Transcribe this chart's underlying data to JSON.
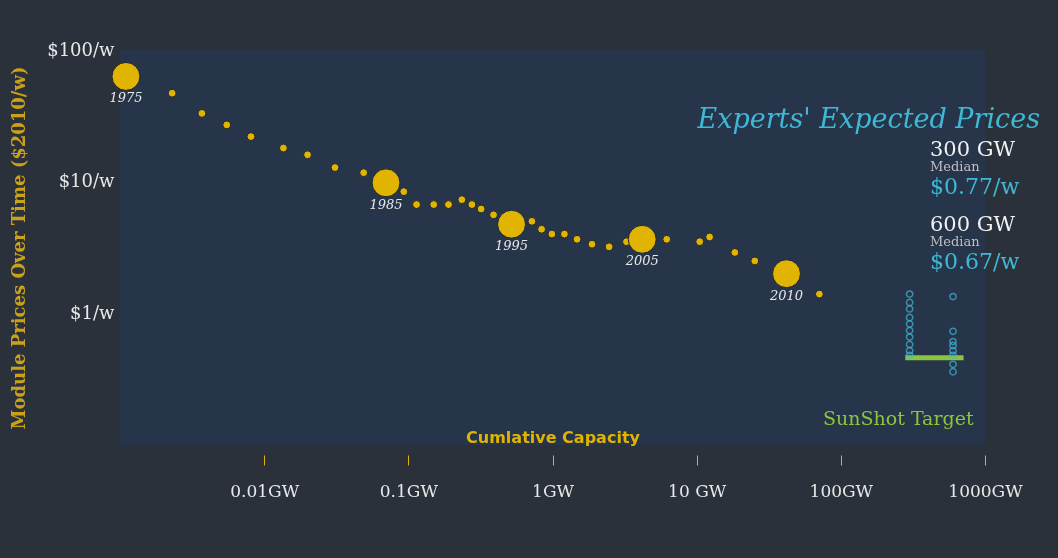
{
  "chart_data": {
    "type": "scatter",
    "xlabel": "Cumlative Capacity",
    "ylabel": "Module Prices Over Time ($2010/w)",
    "log": "xy",
    "xlim": [
      0.001,
      1000
    ],
    "ylim": [
      0.1,
      100
    ],
    "xticks": [
      {
        "value": 0.01,
        "label": "0.01GW"
      },
      {
        "value": 0.1,
        "label": "0.1GW"
      },
      {
        "value": 1,
        "label": "1GW"
      },
      {
        "value": 10,
        "label": "10 GW"
      },
      {
        "value": 100,
        "label": "100GW"
      },
      {
        "value": 1000,
        "label": "1000GW"
      }
    ],
    "yticks": [
      {
        "value": 1,
        "label": "$1/w"
      },
      {
        "value": 10,
        "label": "$10/w"
      },
      {
        "value": 100,
        "label": "$100/w"
      }
    ],
    "series": [
      {
        "type": "bubble",
        "marker": "circle",
        "color": "#e0b400",
        "x": [
          0.0011,
          0.0023,
          0.0037,
          0.0055,
          0.0081,
          0.0136,
          0.02,
          0.031,
          0.049,
          0.07,
          0.093,
          0.114,
          0.15,
          0.19,
          0.235,
          0.276,
          0.32,
          0.39,
          0.52,
          0.72,
          0.84,
          0.99,
          1.21,
          1.48,
          1.88,
          2.47,
          3.26,
          4.19,
          6.2,
          10.5,
          12.3,
          18.4,
          25.3,
          42,
          71
        ],
        "values": [
          63,
          47,
          33,
          27,
          22,
          18,
          16,
          12.8,
          11.7,
          9.8,
          8.4,
          6.7,
          6.7,
          6.7,
          7.3,
          6.7,
          6.2,
          5.6,
          4.75,
          5.0,
          4.35,
          4.0,
          4.0,
          3.65,
          3.35,
          3.2,
          3.5,
          3.65,
          3.65,
          3.5,
          3.8,
          2.9,
          2.5,
          2.0,
          1.4
        ],
        "sizes": [
          1,
          0.08,
          0.08,
          0.08,
          0.08,
          0.08,
          0.08,
          0.08,
          0.08,
          1,
          0.08,
          0.08,
          0.08,
          0.08,
          0.08,
          0.08,
          0.08,
          0.08,
          1,
          0.08,
          0.08,
          0.08,
          0.08,
          0.08,
          0.08,
          0.08,
          0.08,
          1,
          0.08,
          0.08,
          0.08,
          0.08,
          0.08,
          1,
          0.08
        ]
      },
      {
        "type": "line",
        "marker": "none",
        "name": "SunShot Target",
        "color": "#8cc63f",
        "x": [
          280,
          710
        ],
        "values": [
          0.46,
          0.46
        ]
      },
      {
        "type": "scatter",
        "marker": "circle",
        "name": "Experts' Expected Prices",
        "color": "#3fb8d6",
        "x": [
          300,
          300,
          300,
          300,
          300,
          300,
          300,
          300,
          300,
          300,
          600,
          600,
          600,
          600,
          600,
          600,
          600,
          600
        ],
        "values": [
          1.4,
          1.21,
          1.08,
          0.93,
          0.83,
          0.74,
          0.66,
          0.58,
          0.52,
          0.48,
          1.34,
          0.73,
          0.61,
          0.57,
          0.52,
          0.48,
          0.41,
          0.36
        ]
      }
    ],
    "annotations": [
      {
        "text": "1975",
        "x": 0.0011,
        "y": 63
      },
      {
        "text": "1985",
        "x": 0.07,
        "y": 9.8
      },
      {
        "text": "1995",
        "x": 0.52,
        "y": 4.75
      },
      {
        "text": "2005",
        "x": 4.19,
        "y": 3.65
      },
      {
        "text": "2010",
        "x": 42,
        "y": 2.0
      },
      "300 GW",
      "Median",
      "$0.77/w",
      "600 GW",
      "Median",
      "$0.67/w"
    ]
  }
}
